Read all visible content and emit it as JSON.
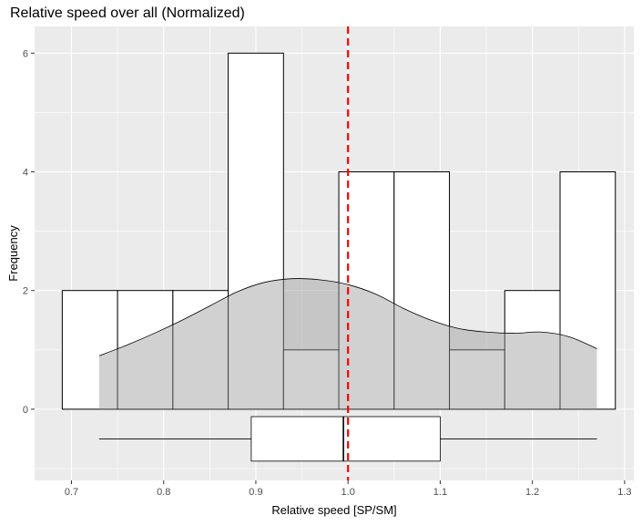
{
  "chart_data": {
    "type": "histogram",
    "title": "Relative speed over all (Normalized)",
    "xlabel": "Relative speed [SP/SM]",
    "ylabel": "Frequency",
    "xlim": [
      0.66,
      1.31
    ],
    "ylim": [
      -1.2,
      6.45
    ],
    "x_ticks": [
      0.7,
      0.8,
      0.9,
      1.0,
      1.1,
      1.2,
      1.3
    ],
    "x_tick_labels": [
      "0.7",
      "0.8",
      "0.9",
      "1.0",
      "1.1",
      "1.2",
      "1.3"
    ],
    "y_ticks": [
      0,
      2,
      4,
      6
    ],
    "y_tick_labels": [
      "0",
      "2",
      "4",
      "6"
    ],
    "bins": [
      {
        "x0": 0.69,
        "x1": 0.75,
        "count": 2
      },
      {
        "x0": 0.75,
        "x1": 0.81,
        "count": 2
      },
      {
        "x0": 0.81,
        "x1": 0.87,
        "count": 2
      },
      {
        "x0": 0.87,
        "x1": 0.93,
        "count": 6
      },
      {
        "x0": 0.93,
        "x1": 0.99,
        "count": 1
      },
      {
        "x0": 0.99,
        "x1": 1.05,
        "count": 4
      },
      {
        "x0": 1.05,
        "x1": 1.11,
        "count": 4
      },
      {
        "x0": 1.11,
        "x1": 1.17,
        "count": 1
      },
      {
        "x0": 1.17,
        "x1": 1.23,
        "count": 2
      },
      {
        "x0": 1.23,
        "x1": 1.29,
        "count": 4
      }
    ],
    "density_curve": {
      "x": [
        0.73,
        0.76,
        0.79,
        0.82,
        0.85,
        0.88,
        0.91,
        0.94,
        0.97,
        1.0,
        1.03,
        1.06,
        1.09,
        1.12,
        1.15,
        1.18,
        1.21,
        1.24,
        1.27
      ],
      "y": [
        0.9,
        1.08,
        1.28,
        1.5,
        1.74,
        1.98,
        2.14,
        2.2,
        2.18,
        2.1,
        1.94,
        1.7,
        1.5,
        1.36,
        1.3,
        1.28,
        1.3,
        1.22,
        1.02
      ],
      "fill": "#cccccc"
    },
    "boxplot": {
      "min": 0.73,
      "q1": 0.895,
      "median": 0.995,
      "q3": 1.1,
      "max": 1.27,
      "y_center": -0.5,
      "height": 0.75
    },
    "reference_line": {
      "x": 1.0,
      "color": "#ff0000",
      "style": "dashed"
    },
    "grid": true,
    "panel_background": "#ebebeb",
    "grid_color": "#ffffff",
    "bar_fill": "#ffffff",
    "bar_stroke": "#000000"
  }
}
